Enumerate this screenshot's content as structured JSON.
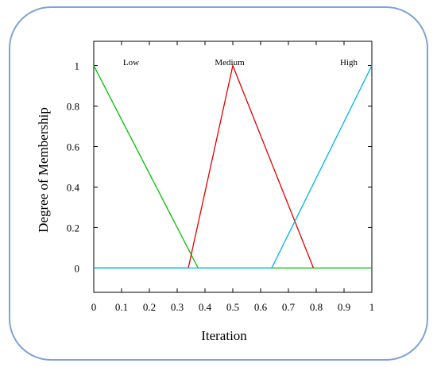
{
  "chart_data": {
    "type": "line",
    "title": "",
    "xlabel": "Iteration",
    "ylabel": "Degree of Membership",
    "xlim": [
      0,
      1
    ],
    "ylim": [
      -0.12,
      1.12
    ],
    "x_ticks": [
      "0",
      "0.1",
      "0.2",
      "0.3",
      "0.4",
      "0.5",
      "0.6",
      "0.7",
      "0.8",
      "0.9",
      "1"
    ],
    "y_ticks": [
      "0",
      "0.2",
      "0.4",
      "0.6",
      "0.8",
      "1"
    ],
    "grid": false,
    "series": [
      {
        "name": "Low",
        "color": "#00c000",
        "x": [
          0,
          0.375,
          1
        ],
        "y": [
          1,
          0,
          0
        ]
      },
      {
        "name": "Medium",
        "color": "#e00000",
        "x": [
          0,
          0.34,
          0.5,
          0.79
        ],
        "y": [
          0,
          0,
          1,
          0
        ]
      },
      {
        "name": "High",
        "color": "#00b4e0",
        "x": [
          0,
          0.64,
          1
        ],
        "y": [
          0,
          0,
          1
        ]
      }
    ],
    "annotations": [
      "Low",
      "Medium",
      "High"
    ]
  },
  "frame": {
    "border_color": "#7ea3d6"
  }
}
